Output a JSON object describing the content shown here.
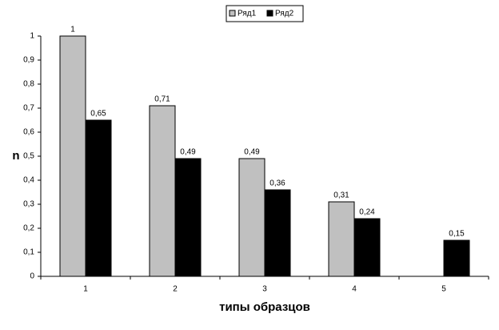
{
  "chart_data": {
    "type": "bar",
    "categories": [
      "1",
      "2",
      "3",
      "4",
      "5"
    ],
    "x_label": "типы образцов",
    "y_label": "n",
    "series": [
      {
        "name": "Ряд1",
        "color": "#c0c0c0",
        "values": [
          1,
          0.71,
          0.49,
          0.31,
          null
        ],
        "value_labels": [
          "1",
          "0,71",
          "0,49",
          "0,31",
          null
        ]
      },
      {
        "name": "Ряд2",
        "color": "#000000",
        "values": [
          0.65,
          0.49,
          0.36,
          0.24,
          0.15
        ],
        "value_labels": [
          "0,65",
          "0,49",
          "0,36",
          "0,24",
          "0,15"
        ]
      }
    ],
    "ylim": [
      0,
      1
    ],
    "yticks": [
      0,
      {
        "value": 0.1,
        "label": "0,1"
      },
      {
        "value": 0.2,
        "label": "0,2"
      },
      {
        "value": 0.3,
        "label": "0,3"
      },
      {
        "value": 0.4,
        "label": "0,4"
      },
      {
        "value": 0.5,
        "label": "0,5"
      },
      {
        "value": 0.6,
        "label": "0,6"
      },
      {
        "value": 0.7,
        "label": "0,7"
      },
      {
        "value": 0.8,
        "label": "0,8"
      },
      {
        "value": 0.9,
        "label": "0,9"
      },
      1
    ],
    "grid": false,
    "legend": "top"
  }
}
